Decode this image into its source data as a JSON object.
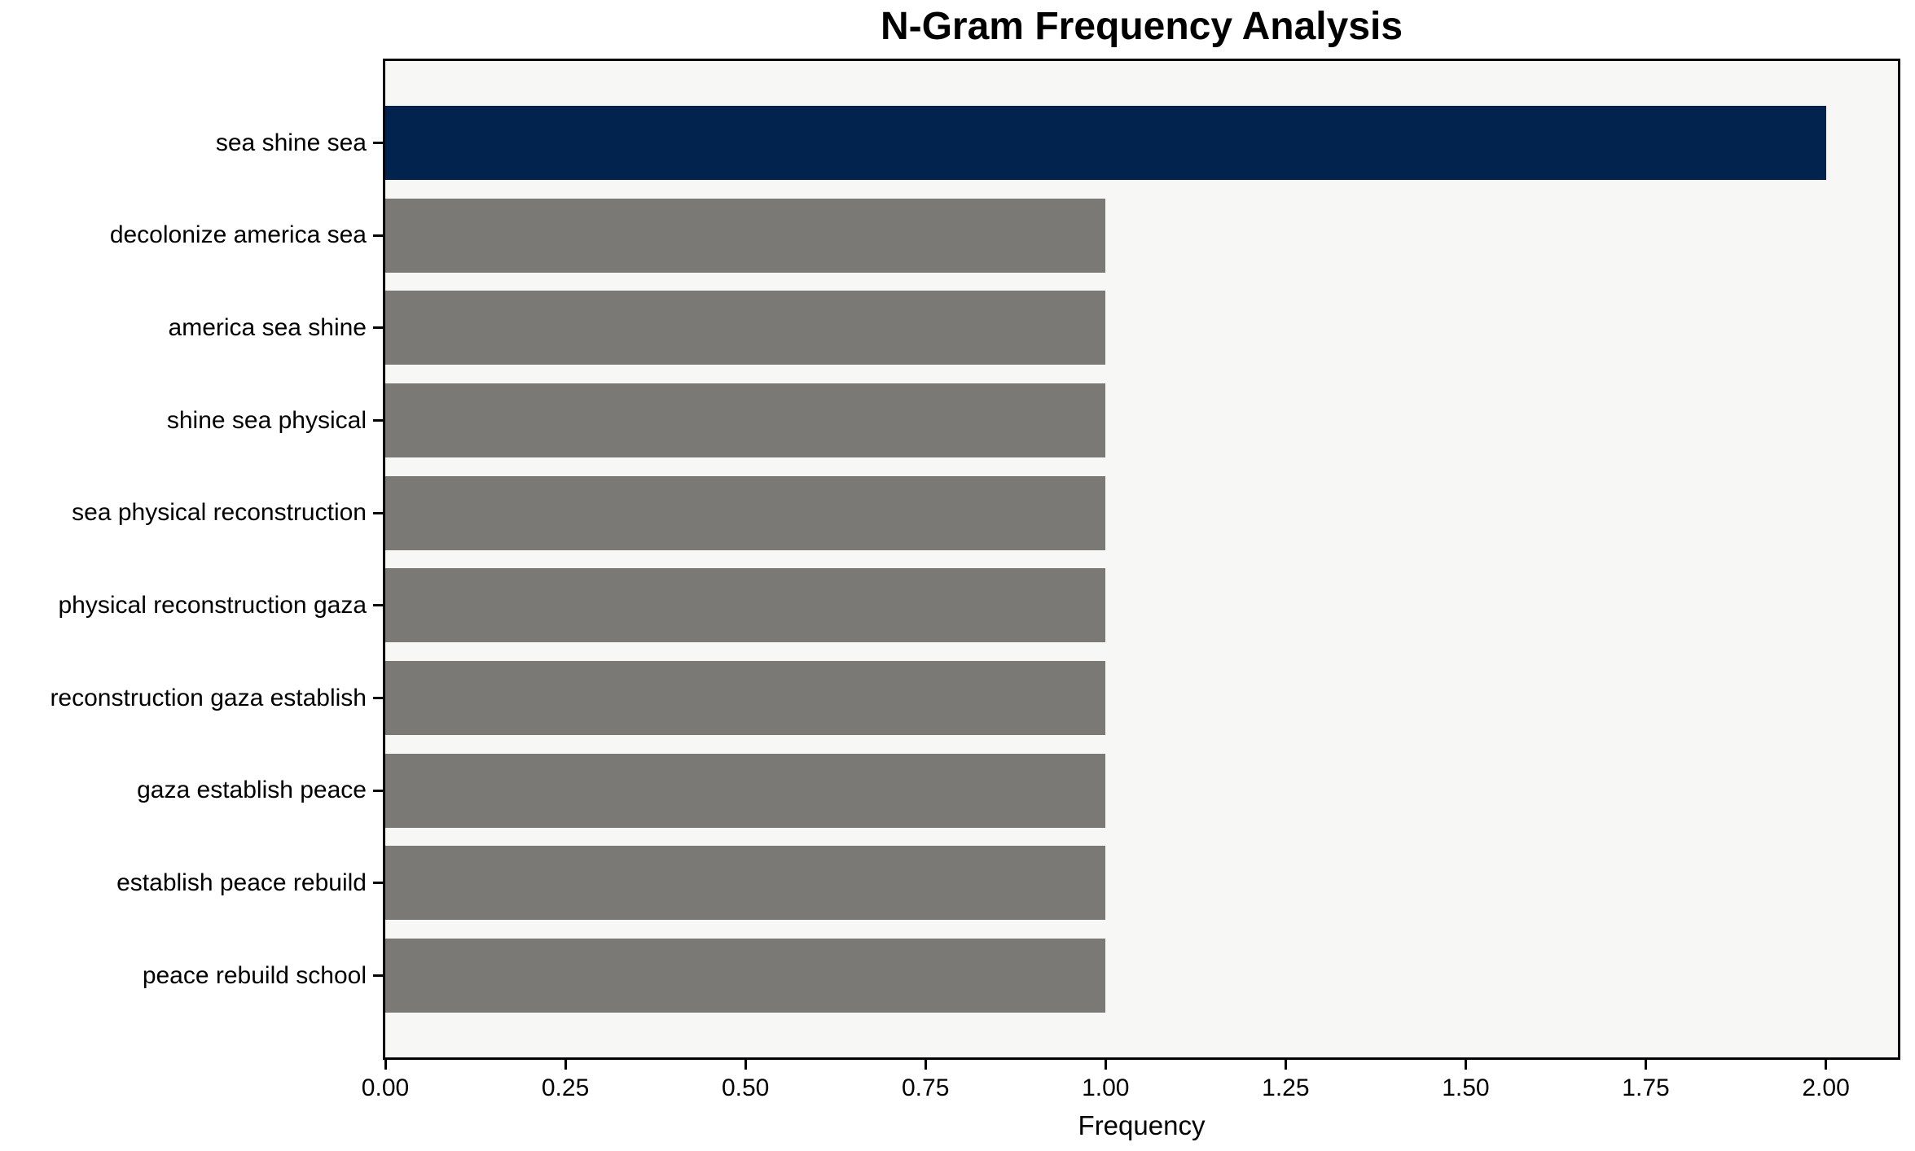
{
  "chart_data": {
    "type": "bar",
    "orientation": "horizontal",
    "title": "N-Gram Frequency Analysis",
    "xlabel": "Frequency",
    "ylabel": "",
    "categories": [
      "sea shine sea",
      "decolonize america sea",
      "america sea shine",
      "shine sea physical",
      "sea physical reconstruction",
      "physical reconstruction gaza",
      "reconstruction gaza establish",
      "gaza establish peace",
      "establish peace rebuild",
      "peace rebuild school"
    ],
    "values": [
      2,
      1,
      1,
      1,
      1,
      1,
      1,
      1,
      1,
      1
    ],
    "bar_colors": [
      "#02234d",
      "#7b7975",
      "#7b7975",
      "#7b7975",
      "#7b7975",
      "#7b7975",
      "#7b7975",
      "#7b7975",
      "#7b7975",
      "#7b7975"
    ],
    "highlight_color": "#02234d",
    "default_bar_color": "#7b7975",
    "xlim": [
      0,
      2.1
    ],
    "xticks": [
      {
        "value": 0.0,
        "label": "0.00"
      },
      {
        "value": 0.25,
        "label": "0.25"
      },
      {
        "value": 0.5,
        "label": "0.50"
      },
      {
        "value": 0.75,
        "label": "0.75"
      },
      {
        "value": 1.0,
        "label": "1.00"
      },
      {
        "value": 1.25,
        "label": "1.25"
      },
      {
        "value": 1.5,
        "label": "1.50"
      },
      {
        "value": 1.75,
        "label": "1.75"
      },
      {
        "value": 2.0,
        "label": "2.00"
      }
    ],
    "grid": false,
    "legend": null,
    "bar_height_fraction": 0.8,
    "plot_background": "#f7f7f6",
    "figure_background": "#ffffff",
    "spine_color": "#000000"
  }
}
